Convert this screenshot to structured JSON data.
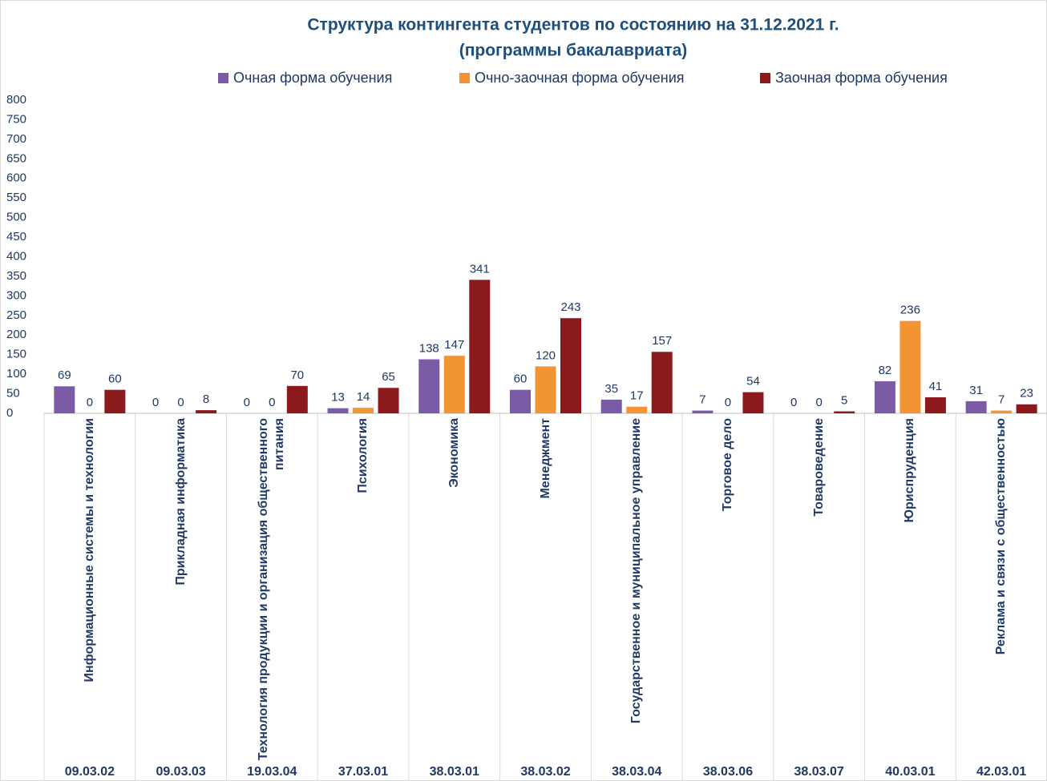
{
  "chart_data": {
    "type": "bar",
    "title": "Структура контингента студентов по состоянию на 31.12.2021 г.",
    "subtitle": "(программы бакалавриата)",
    "categories": [
      "Информационные системы и технологии",
      "Прикладная информатика",
      "Технология продукции и организация общественного питания",
      "Психология",
      "Экономика",
      "Менеджмент",
      "Государственное и муниципальное управление",
      "Торговое дело",
      "Товароведение",
      "Юриспруденция",
      "Реклама и связи с общественностью"
    ],
    "category_codes": [
      "09.03.02",
      "09.03.03",
      "19.03.04",
      "37.03.01",
      "38.03.01",
      "38.03.02",
      "38.03.04",
      "38.03.06",
      "38.03.07",
      "40.03.01",
      "42.03.01"
    ],
    "series": [
      {
        "name": "Очная форма обучения",
        "color": "#7b5aa6",
        "values": [
          69,
          0,
          0,
          13,
          138,
          60,
          35,
          7,
          0,
          82,
          31
        ]
      },
      {
        "name": "Очно-заочная форма обучения",
        "color": "#f39433",
        "values": [
          0,
          0,
          0,
          14,
          147,
          120,
          17,
          0,
          0,
          236,
          7
        ]
      },
      {
        "name": "Заочная форма обучения",
        "color": "#8b1a1c",
        "values": [
          60,
          8,
          70,
          65,
          341,
          243,
          157,
          54,
          5,
          41,
          23
        ]
      }
    ],
    "ylim": [
      0,
      800
    ],
    "yticks": [
      0,
      50,
      100,
      150,
      200,
      250,
      300,
      350,
      400,
      450,
      500,
      550,
      600,
      650,
      700,
      750,
      800
    ],
    "grid": false,
    "legend": "top"
  }
}
